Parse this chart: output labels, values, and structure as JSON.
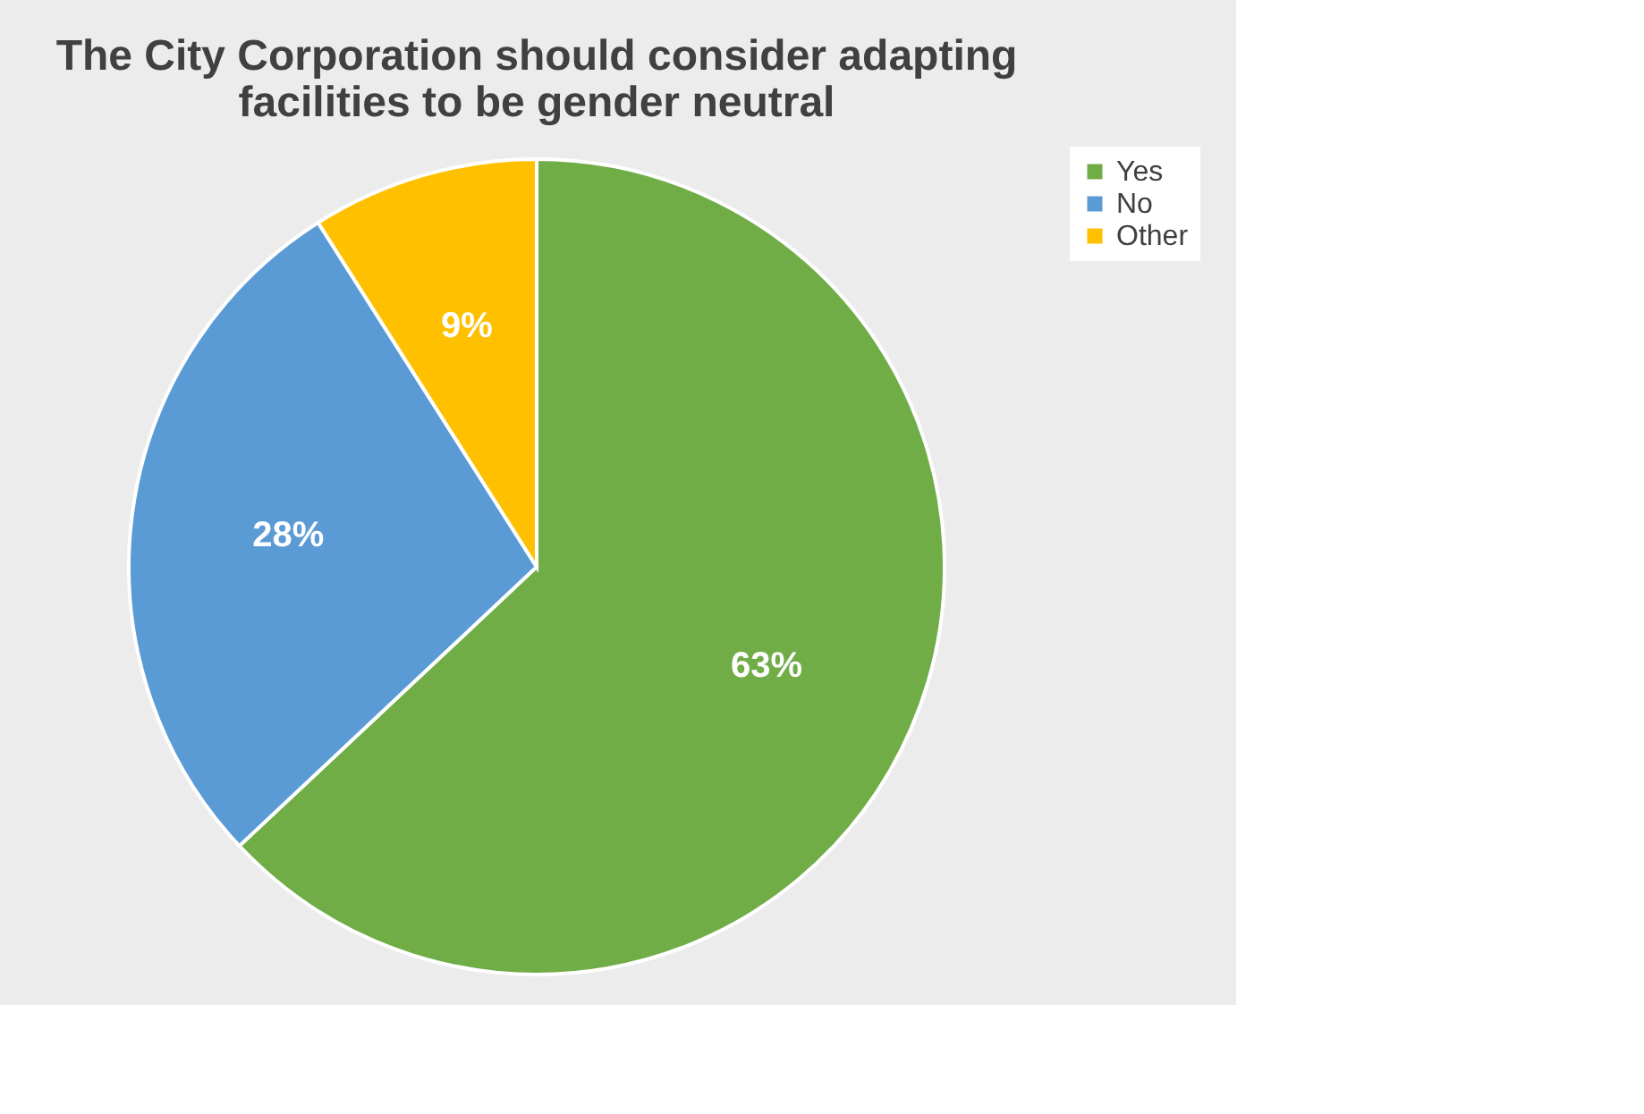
{
  "chart_data": {
    "type": "pie",
    "title": "The City Corporation should consider adapting facilities to be gender neutral",
    "categories": [
      "Yes",
      "No",
      "Other"
    ],
    "values": [
      63,
      28,
      9
    ],
    "colors": [
      "#70ad47",
      "#5b9bd5",
      "#ffc000"
    ],
    "value_labels": [
      "63%",
      "28%",
      "9%"
    ],
    "legend": "right"
  }
}
